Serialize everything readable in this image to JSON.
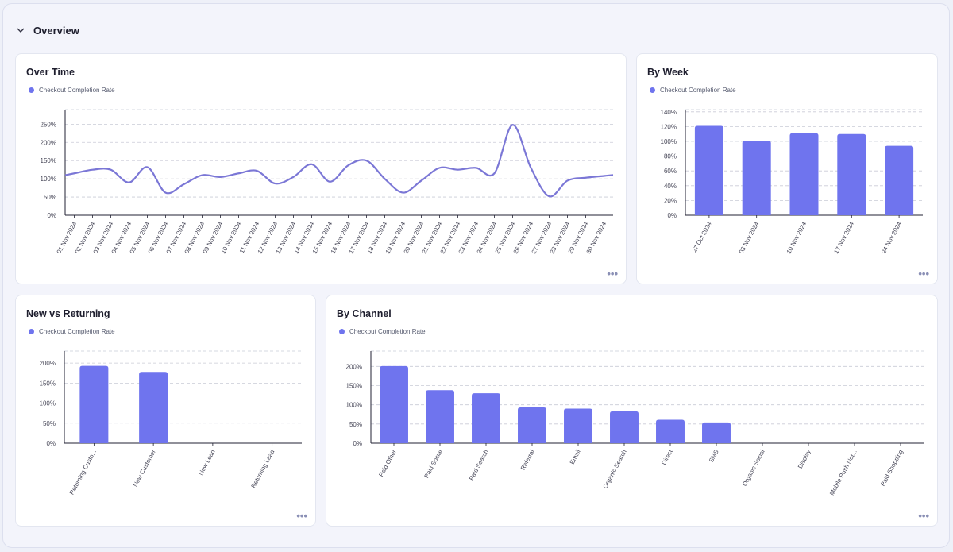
{
  "section": {
    "title": "Overview",
    "chevron_icon": "chevron-down-icon"
  },
  "colors": {
    "accent": "#6f74ee",
    "line": "#7b77d6",
    "grid": "#c9cbd6",
    "axis": "#222233"
  },
  "cards": {
    "over_time": {
      "title": "Over Time",
      "legend": "Checkout Completion Rate",
      "more": "•••"
    },
    "by_week": {
      "title": "By Week",
      "legend": "Checkout Completion Rate",
      "more": "•••"
    },
    "new_vs_returning": {
      "title": "New vs Returning",
      "legend": "Checkout Completion Rate",
      "more": "•••"
    },
    "by_channel": {
      "title": "By Channel",
      "legend": "Checkout Completion Rate",
      "more": "•••"
    }
  },
  "chart_data": [
    {
      "id": "over_time",
      "type": "line",
      "title": "Over Time",
      "series": [
        {
          "name": "Checkout Completion Rate",
          "values": [
            115,
            125,
            125,
            90,
            132,
            62,
            85,
            110,
            105,
            115,
            122,
            87,
            105,
            140,
            92,
            137,
            150,
            100,
            62,
            95,
            130,
            125,
            130,
            115,
            248,
            130,
            52,
            95,
            103,
            108
          ]
        }
      ],
      "categories": [
        "01 Nov 2024",
        "02 Nov 2024",
        "03 Nov 2024",
        "04 Nov 2024",
        "05 Nov 2024",
        "06 Nov 2024",
        "07 Nov 2024",
        "08 Nov 2024",
        "09 Nov 2024",
        "10 Nov 2024",
        "11 Nov 2024",
        "12 Nov 2024",
        "13 Nov 2024",
        "14 Nov 2024",
        "15 Nov 2024",
        "16 Nov 2024",
        "17 Nov 2024",
        "18 Nov 2024",
        "19 Nov 2024",
        "20 Nov 2024",
        "21 Nov 2024",
        "22 Nov 2024",
        "23 Nov 2024",
        "24 Nov 2024",
        "25 Nov 2024",
        "26 Nov 2024",
        "27 Nov 2024",
        "28 Nov 2024",
        "29 Nov 2024",
        "30 Nov 2024"
      ],
      "yticks": [
        "0%",
        "50%",
        "100%",
        "150%",
        "200%",
        "250%"
      ],
      "ylim": [
        0,
        290
      ],
      "grid": true
    },
    {
      "id": "by_week",
      "type": "bar",
      "title": "By Week",
      "series": [
        {
          "name": "Checkout Completion Rate",
          "values": [
            121,
            101,
            111,
            110,
            94
          ]
        }
      ],
      "categories": [
        "27 Oct 2024",
        "03 Nov 2024",
        "10 Nov 2024",
        "17 Nov 2024",
        "24 Nov 2024"
      ],
      "yticks": [
        "0%",
        "20%",
        "40%",
        "60%",
        "80%",
        "100%",
        "120%",
        "140%"
      ],
      "ylim": [
        0,
        143
      ],
      "grid": true
    },
    {
      "id": "new_vs_returning",
      "type": "bar",
      "title": "New vs Returning",
      "series": [
        {
          "name": "Checkout Completion Rate",
          "values": [
            193,
            178,
            0,
            0
          ]
        }
      ],
      "categories": [
        "Returning Custo...",
        "New Customer",
        "New Lead",
        "Returning Lead"
      ],
      "yticks": [
        "0%",
        "50%",
        "100%",
        "150%",
        "200%"
      ],
      "ylim": [
        0,
        230
      ],
      "grid": true
    },
    {
      "id": "by_channel",
      "type": "bar",
      "title": "By Channel",
      "series": [
        {
          "name": "Checkout Completion Rate",
          "values": [
            201,
            138,
            130,
            93,
            90,
            83,
            61,
            54,
            0,
            0,
            0,
            0
          ]
        }
      ],
      "categories": [
        "Paid Other",
        "Paid Social",
        "Paid Search",
        "Referral",
        "Email",
        "Organic Search",
        "Direct",
        "SMS",
        "Organic Social",
        "Display",
        "Mobile Push Not...",
        "Paid Shopping"
      ],
      "yticks": [
        "0%",
        "50%",
        "100%",
        "150%",
        "200%"
      ],
      "ylim": [
        0,
        240
      ],
      "grid": true
    }
  ]
}
